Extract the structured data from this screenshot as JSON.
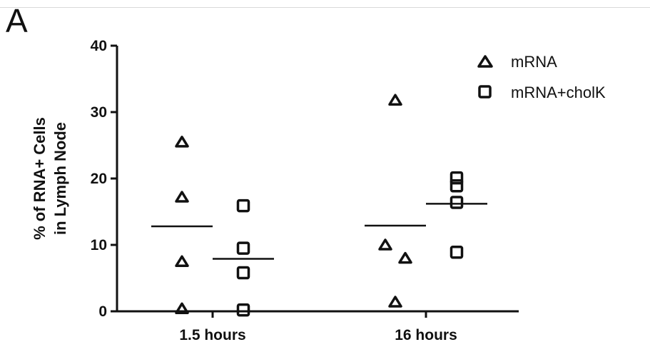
{
  "figure": {
    "panel_label": "A"
  },
  "chart_data": {
    "type": "scatter",
    "title": "",
    "ylabel_lines": [
      "% of RNA+ Cells",
      "in Lymph Node"
    ],
    "xlabel": "",
    "ylim": [
      0,
      40
    ],
    "yticks": [
      0,
      10,
      20,
      30,
      40
    ],
    "categories": [
      "1.5 hours",
      "16 hours"
    ],
    "legend_position": "top-right",
    "series": [
      {
        "name": "mRNA",
        "marker": "triangle",
        "values": [
          [
            25.5,
            17.2,
            7.5,
            0.4
          ],
          [
            31.8,
            10.0,
            8.0,
            1.4
          ]
        ],
        "means": [
          12.8,
          12.9
        ]
      },
      {
        "name": "mRNA+cholK",
        "marker": "square",
        "values": [
          [
            15.9,
            9.5,
            5.8,
            0.2
          ],
          [
            20.1,
            18.9,
            16.4,
            8.9
          ]
        ],
        "means": [
          7.9,
          16.2
        ]
      }
    ],
    "x_offsets": [
      [
        0.0,
        0.0,
        0.0,
        0.0
      ],
      [
        0.0,
        -0.35,
        0.35,
        0.0
      ]
    ]
  }
}
